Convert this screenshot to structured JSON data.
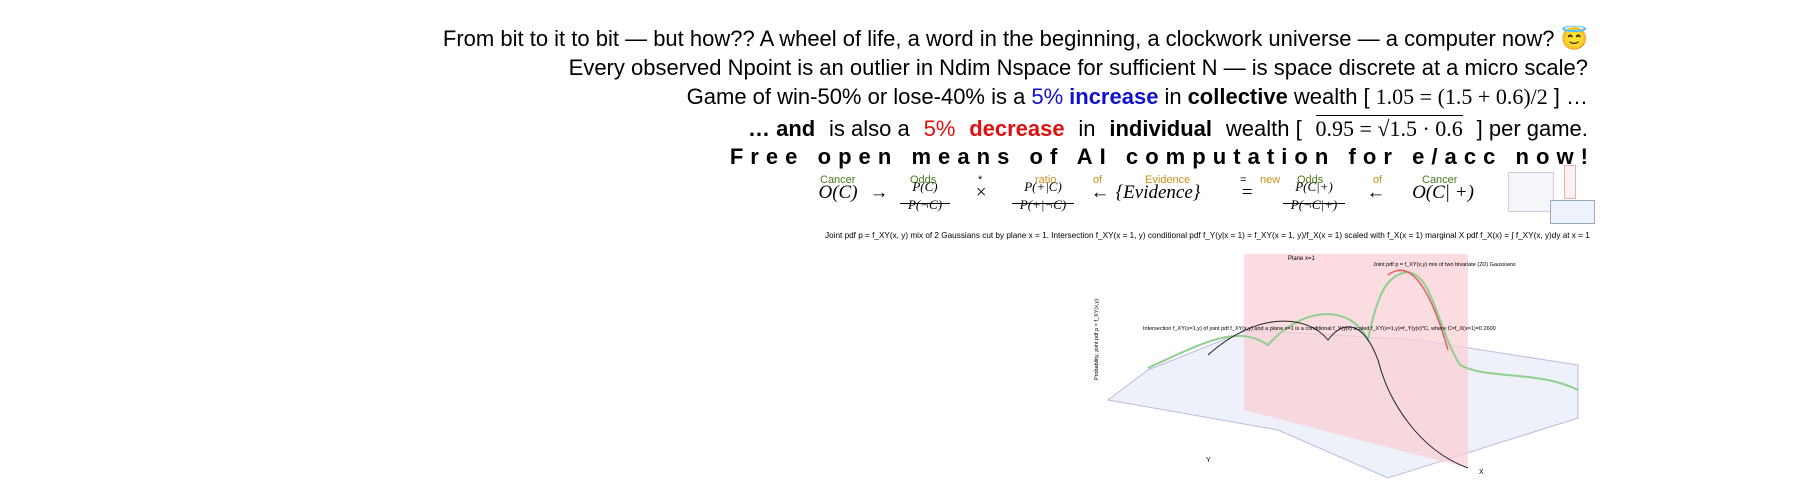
{
  "header": {
    "lines": [
      [
        "From bit to it to bit — but how?? A wheel of life, a word in the beginning, a clockwork universe — a computer now? 😇"
      ],
      [
        "Every observed Npoint is an outlier in Ndim Nspace for sufficient N — is space discrete at a micro scale?"
      ],
      [
        "Game of win-50% or lose-40% is a",
        "5%",
        "increase",
        "in",
        "collective",
        "wealth [",
        "1.05 = (1.5 + 0.6)/2",
        "] …"
      ],
      [
        "… and",
        "is also a",
        "5%",
        "decrease",
        "in",
        "individual",
        "wealth [",
        "0.95 = √1.5 · 0.6",
        "] per game."
      ],
      [
        "Free open means of AI computation for e/acc now!"
      ]
    ],
    "formula": {
      "labels": [
        "Cancer",
        "Odds",
        "*",
        "ratio",
        "of",
        "Evidence",
        "=",
        "new",
        "Odds",
        "of",
        "Cancer"
      ],
      "terms": [
        "O(C)",
        "→",
        "P(C)",
        "P(¬C)",
        "×",
        "P(+|C)",
        "P(+|¬C)",
        "←",
        "{Evidence}",
        "=",
        "P(C|+)",
        "P(¬C|+)",
        "←",
        "O(C| +)"
      ]
    },
    "caption": "Joint pdf p = f_XY(x, y) mix of 2 Gaussians cut by plane x = 1. Intersection f_XY(x = 1, y) conditional pdf f_Y(y|x = 1) = f_XY(x = 1, y)/f_X(x = 1) scaled with f_X(x = 1) marginal X pdf f_X(x) = ∫ f_XY(x, y)dy at x = 1",
    "plot": {
      "plane_label": "Plane x=1",
      "surface_label": "Joint pdf p = f_XY(x,y) mix of two bivariate (2D) Gaussians",
      "intersection_label": "Intersection f_XY(x=1,y) of joint pdf f_XY(x,y) and a plane x=1 is a conditional f_Y(y|x) scaled f_XY(x=1,y)=f_Y(y|x)*C, where C=f_X(x=1)=0.2600",
      "y_axis_label": "Probability, joint pdf p = f_XY(x,y)",
      "x_label": "X",
      "y_label": "Y"
    }
  }
}
